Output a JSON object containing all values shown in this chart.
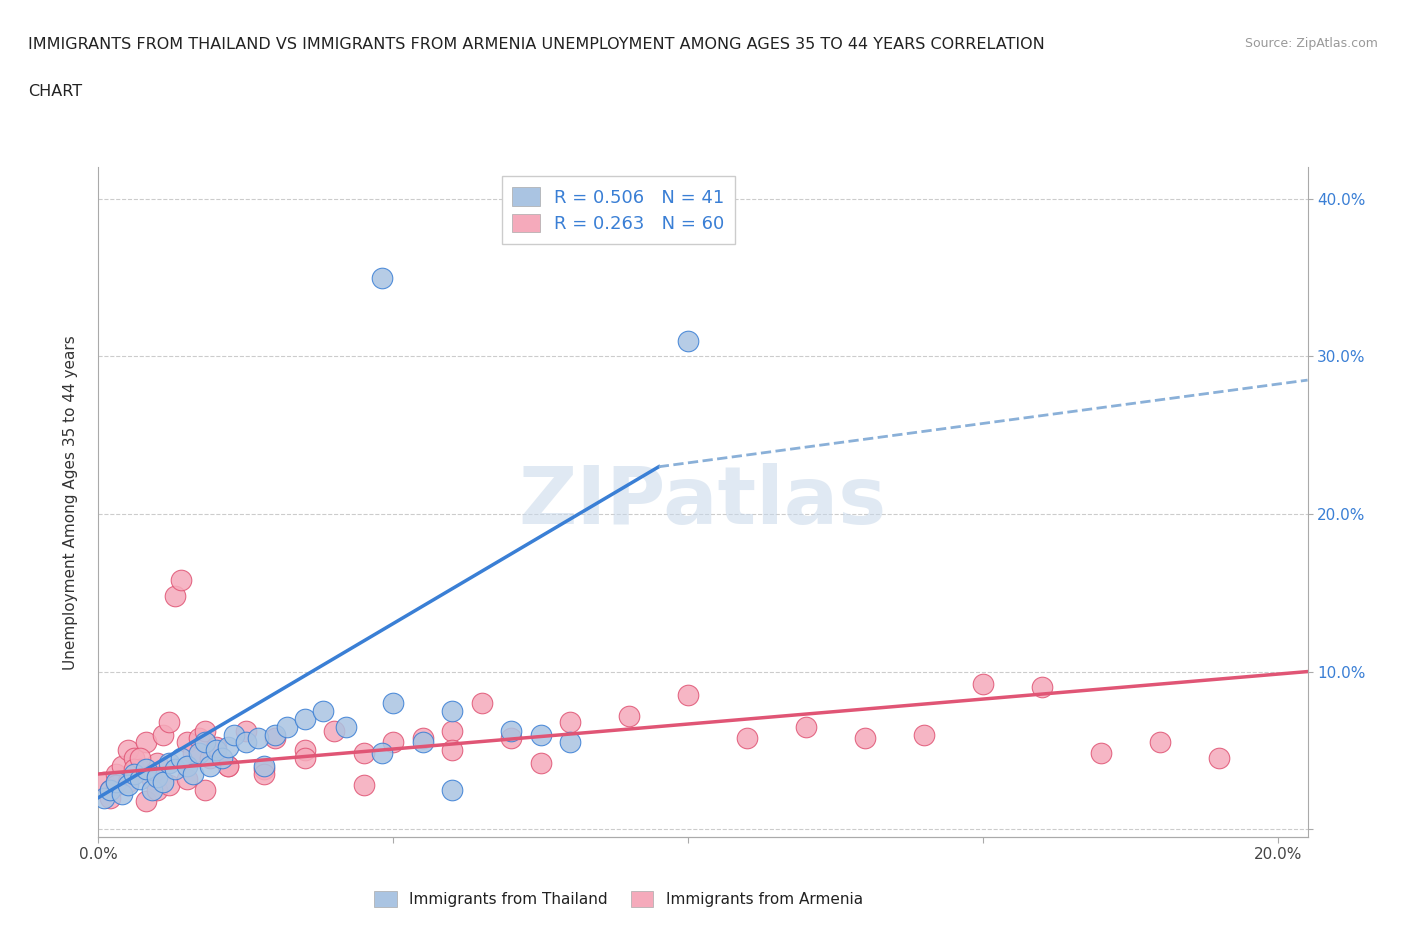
{
  "title_line1": "IMMIGRANTS FROM THAILAND VS IMMIGRANTS FROM ARMENIA UNEMPLOYMENT AMONG AGES 35 TO 44 YEARS CORRELATION",
  "title_line2": "CHART",
  "source": "Source: ZipAtlas.com",
  "ylabel": "Unemployment Among Ages 35 to 44 years",
  "xlabel_legend1": "Immigrants from Thailand",
  "xlabel_legend2": "Immigrants from Armenia",
  "R1": 0.506,
  "N1": 41,
  "R2": 0.263,
  "N2": 60,
  "color1": "#aac4e2",
  "color2": "#f5aabb",
  "line_color1": "#3a7fd5",
  "line_color2": "#e05575",
  "dashed_color": "#8ab0d8",
  "xlim": [
    0.0,
    0.205
  ],
  "ylim": [
    -0.005,
    0.42
  ],
  "xticks": [
    0.0,
    0.05,
    0.1,
    0.15,
    0.2
  ],
  "yticks": [
    0.0,
    0.1,
    0.2,
    0.3,
    0.4
  ],
  "xtick_labels_bottom": [
    "0.0%",
    "",
    "",
    "",
    "20.0%"
  ],
  "ytick_labels_right": [
    "",
    "10.0%",
    "20.0%",
    "30.0%",
    "40.0%"
  ],
  "thailand_x": [
    0.001,
    0.002,
    0.003,
    0.004,
    0.005,
    0.006,
    0.007,
    0.008,
    0.009,
    0.01,
    0.011,
    0.012,
    0.013,
    0.014,
    0.015,
    0.016,
    0.017,
    0.018,
    0.019,
    0.02,
    0.021,
    0.022,
    0.023,
    0.025,
    0.027,
    0.03,
    0.032,
    0.035,
    0.038,
    0.042,
    0.05,
    0.06,
    0.055,
    0.07,
    0.048,
    0.075,
    0.08,
    0.1,
    0.048,
    0.06,
    0.028
  ],
  "thailand_y": [
    0.02,
    0.025,
    0.03,
    0.022,
    0.028,
    0.035,
    0.032,
    0.038,
    0.025,
    0.033,
    0.03,
    0.042,
    0.038,
    0.045,
    0.04,
    0.035,
    0.048,
    0.055,
    0.04,
    0.05,
    0.045,
    0.052,
    0.06,
    0.055,
    0.058,
    0.06,
    0.065,
    0.07,
    0.075,
    0.065,
    0.08,
    0.075,
    0.055,
    0.062,
    0.048,
    0.06,
    0.055,
    0.31,
    0.35,
    0.025,
    0.04
  ],
  "armenia_x": [
    0.001,
    0.002,
    0.003,
    0.004,
    0.005,
    0.006,
    0.007,
    0.008,
    0.009,
    0.01,
    0.011,
    0.012,
    0.013,
    0.014,
    0.015,
    0.016,
    0.017,
    0.018,
    0.019,
    0.02,
    0.022,
    0.025,
    0.028,
    0.03,
    0.035,
    0.04,
    0.045,
    0.05,
    0.055,
    0.06,
    0.065,
    0.07,
    0.08,
    0.09,
    0.1,
    0.11,
    0.12,
    0.13,
    0.14,
    0.15,
    0.16,
    0.17,
    0.18,
    0.19,
    0.002,
    0.003,
    0.005,
    0.006,
    0.007,
    0.008,
    0.01,
    0.012,
    0.015,
    0.018,
    0.022,
    0.028,
    0.035,
    0.045,
    0.06,
    0.075
  ],
  "armenia_y": [
    0.03,
    0.025,
    0.035,
    0.04,
    0.05,
    0.045,
    0.038,
    0.055,
    0.032,
    0.042,
    0.06,
    0.068,
    0.148,
    0.158,
    0.055,
    0.048,
    0.058,
    0.062,
    0.045,
    0.052,
    0.04,
    0.062,
    0.038,
    0.058,
    0.05,
    0.062,
    0.048,
    0.055,
    0.058,
    0.062,
    0.08,
    0.058,
    0.068,
    0.072,
    0.085,
    0.058,
    0.065,
    0.058,
    0.06,
    0.092,
    0.09,
    0.048,
    0.055,
    0.045,
    0.02,
    0.028,
    0.03,
    0.038,
    0.045,
    0.018,
    0.025,
    0.028,
    0.032,
    0.025,
    0.04,
    0.035,
    0.045,
    0.028,
    0.05,
    0.042
  ],
  "blue_line_x": [
    0.0,
    0.095
  ],
  "blue_line_y": [
    0.02,
    0.23
  ],
  "dashed_line_x": [
    0.095,
    0.205
  ],
  "dashed_line_y": [
    0.23,
    0.285
  ],
  "pink_line_x": [
    0.0,
    0.205
  ],
  "pink_line_y": [
    0.035,
    0.1
  ]
}
